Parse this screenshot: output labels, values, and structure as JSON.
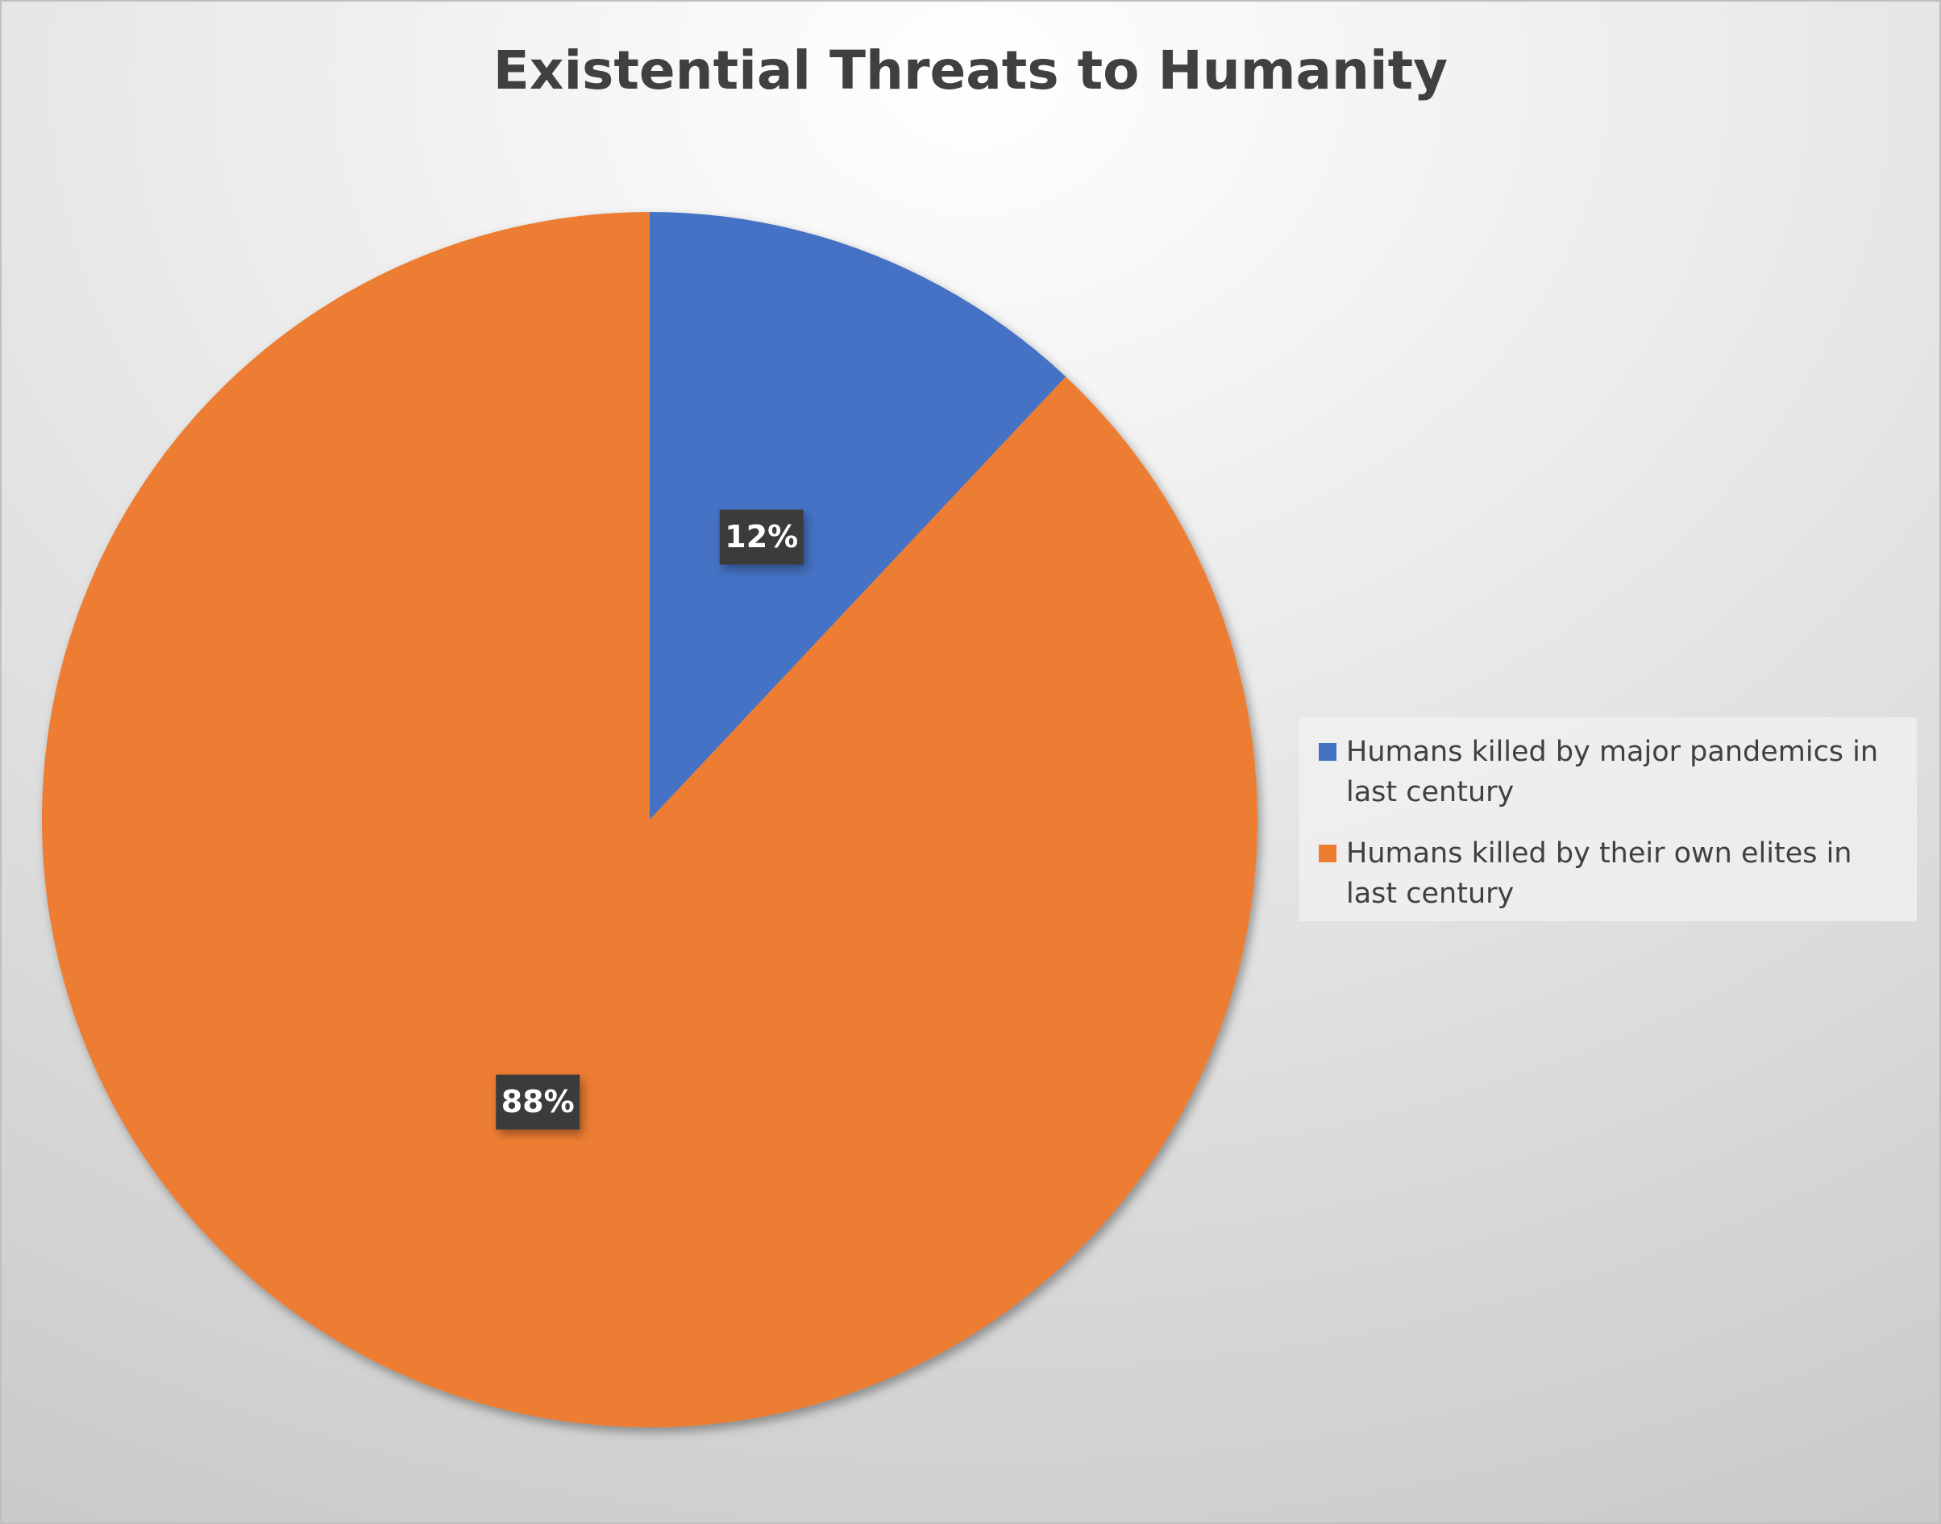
{
  "chart_data": {
    "type": "pie",
    "title": "Existential Threats to Humanity",
    "categories": [
      "Humans killed by major pandemics in last century",
      "Humans killed by their own elites in last century"
    ],
    "values": [
      12,
      88
    ],
    "value_labels": [
      "12%",
      "88%"
    ],
    "colors": [
      "#4472c4",
      "#ed7d31"
    ],
    "legend": "right"
  }
}
